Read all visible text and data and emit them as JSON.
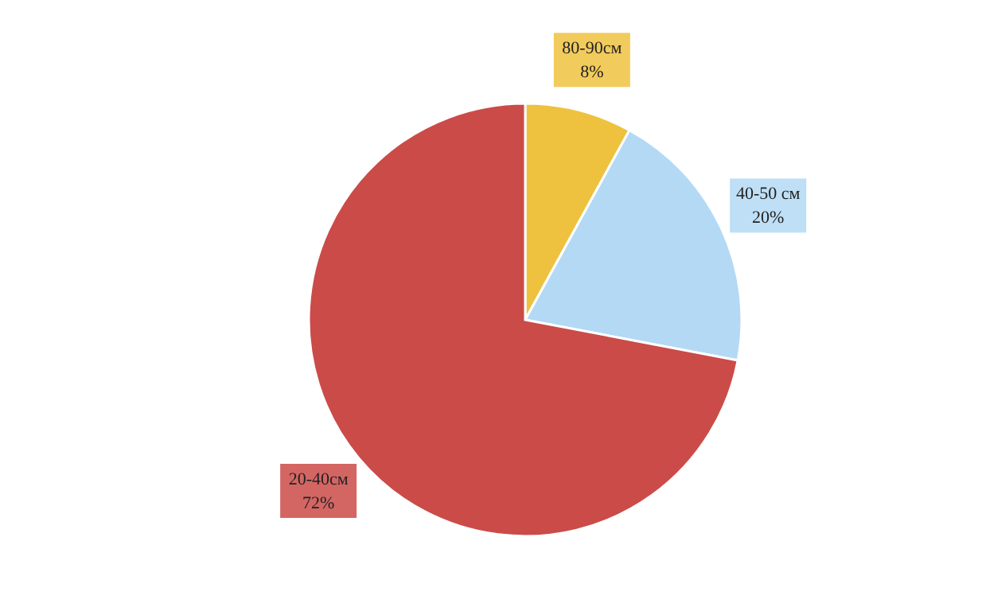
{
  "chart_data": {
    "type": "pie",
    "categories": [
      "80-90см",
      "40-50 см",
      "20-40см"
    ],
    "values": [
      8,
      20,
      72
    ],
    "colors": [
      "#eec23f",
      "#b3d9f5",
      "#cb4b48"
    ],
    "value_labels": [
      "8%",
      "20%",
      "72%"
    ]
  }
}
